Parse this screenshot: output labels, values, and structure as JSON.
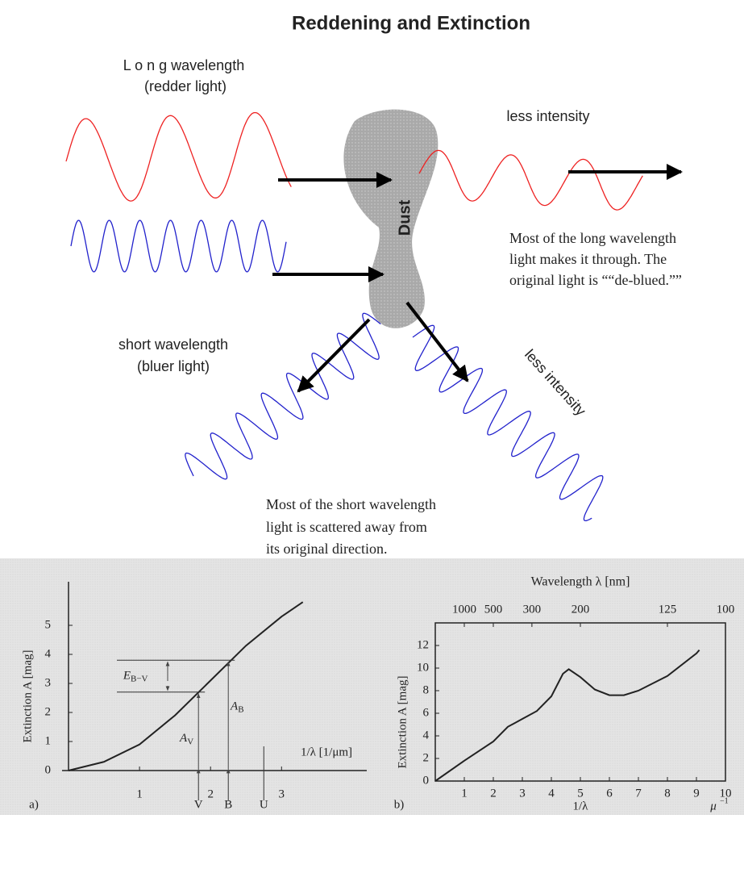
{
  "diagram": {
    "title": "Reddening and Extinction",
    "long_label": [
      "L o n g  wavelength",
      "(redder light)"
    ],
    "short_label": [
      "short wavelength",
      "(bluer light)"
    ],
    "dust": "Dust",
    "less_intensity": [
      "less intensity",
      "less intensity"
    ],
    "long_note": [
      "Most of the long wavelength",
      "light makes it through. The",
      "original light is ““de-blued.””"
    ],
    "short_note": [
      "Most of the short wavelength",
      "light is scattered away from",
      "its original direction."
    ]
  },
  "chart_data": [
    {
      "type": "line",
      "panel_label": "a)",
      "y_label": "Extinction A [mag]",
      "x_label": "1/λ [1/μm]",
      "color": "#222",
      "x": [
        0,
        0.5,
        1,
        1.5,
        2,
        2.5,
        3,
        3.3
      ],
      "values": [
        0,
        0.3,
        0.9,
        1.9,
        3.1,
        4.3,
        5.3,
        5.8
      ],
      "xlim": [
        0,
        4.2
      ],
      "ylim": [
        0,
        6.5
      ],
      "xticks": [
        1,
        2,
        3
      ],
      "yticks": [
        0,
        1,
        2,
        3,
        4,
        5
      ],
      "bands": [
        {
          "name": "V",
          "x": 1.83
        },
        {
          "name": "B",
          "x": 2.25
        },
        {
          "name": "U",
          "x": 2.75
        }
      ],
      "extinction_labels": [
        {
          "symbol": "A",
          "sub": "V",
          "value": 2.7
        },
        {
          "symbol": "A",
          "sub": "B",
          "value": 3.8
        }
      ],
      "color_excess": {
        "symbol": "E",
        "sub": "B−V"
      }
    },
    {
      "type": "line",
      "panel_label": "b)",
      "y_label": "Extinction A [mag]",
      "x_label": "1/λ",
      "unit": "μ",
      "unit_power": "−1",
      "top_label": "Wavelength λ  [nm]",
      "color": "#222",
      "x": [
        0,
        1,
        2,
        2.5,
        3,
        3.5,
        4,
        4.4,
        4.6,
        5,
        5.5,
        6,
        6.5,
        7,
        8,
        9,
        9.1
      ],
      "values": [
        0,
        1.8,
        3.5,
        4.8,
        5.5,
        6.2,
        7.5,
        9.5,
        9.9,
        9.2,
        8.1,
        7.6,
        7.6,
        8,
        9.3,
        11.3,
        11.6
      ],
      "xlim": [
        0,
        10
      ],
      "ylim": [
        0,
        14
      ],
      "xticks": [
        1,
        2,
        3,
        4,
        5,
        6,
        7,
        8,
        9,
        10
      ],
      "yticks": [
        0,
        2,
        4,
        6,
        8,
        10,
        12
      ],
      "x2ticks": [
        {
          "value": 1,
          "label": "1000"
        },
        {
          "value": 2,
          "label": "500"
        },
        {
          "value": 3.33,
          "label": "300"
        },
        {
          "value": 5,
          "label": "200"
        },
        {
          "value": 8,
          "label": "125"
        },
        {
          "value": 10,
          "label": "100"
        }
      ]
    }
  ]
}
